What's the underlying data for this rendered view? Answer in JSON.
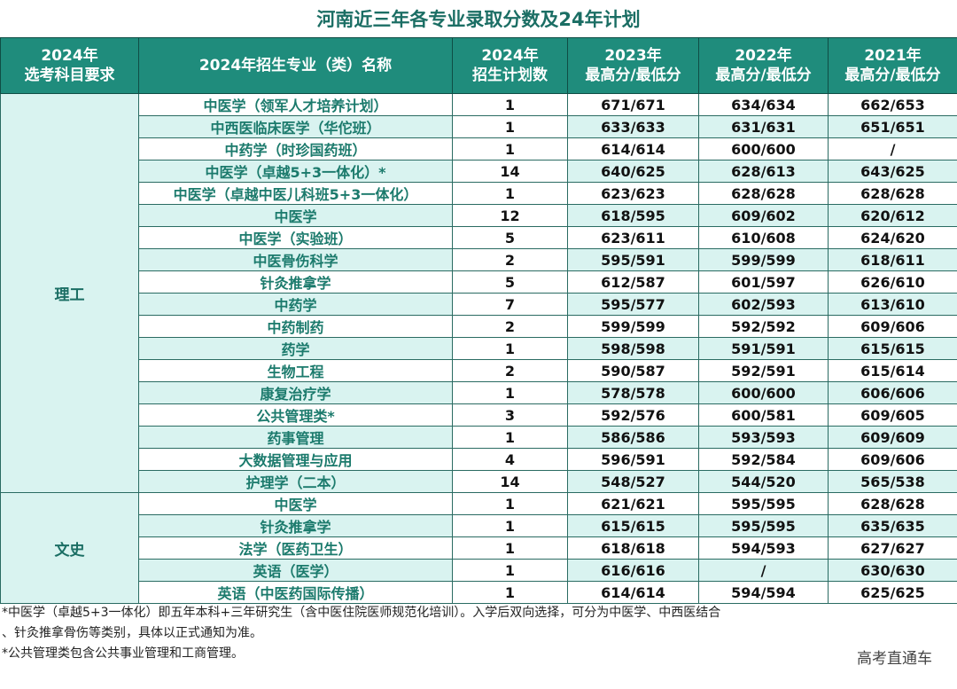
{
  "title": "河南近三年各专业录取分数及24年计划",
  "headers": [
    {
      "line1": "2024年",
      "line2": "选考科目要求"
    },
    {
      "line1": "2024年招生专业（类）名称",
      "line2": ""
    },
    {
      "line1": "2024年",
      "line2": "招生计划数"
    },
    {
      "line1": "2023年",
      "line2": "最高分/最低分"
    },
    {
      "line1": "2022年",
      "line2": "最高分/最低分"
    },
    {
      "line1": "2021年",
      "line2": "最高分/最低分"
    }
  ],
  "groups": [
    {
      "name": "理工",
      "rows": [
        {
          "major": "中医学（领军人才培养计划）",
          "plan": "1",
          "y2023": "671/671",
          "y2022": "634/634",
          "y2021": "662/653"
        },
        {
          "major": "中西医临床医学（华佗班）",
          "plan": "1",
          "y2023": "633/633",
          "y2022": "631/631",
          "y2021": "651/651"
        },
        {
          "major": "中药学（时珍国药班）",
          "plan": "1",
          "y2023": "614/614",
          "y2022": "600/600",
          "y2021": "/"
        },
        {
          "major": "中医学（卓越5+3一体化）*",
          "plan": "14",
          "y2023": "640/625",
          "y2022": "628/613",
          "y2021": "643/625"
        },
        {
          "major": "中医学（卓越中医儿科班5+3一体化）",
          "plan": "1",
          "y2023": "623/623",
          "y2022": "628/628",
          "y2021": "628/628"
        },
        {
          "major": "中医学",
          "plan": "12",
          "y2023": "618/595",
          "y2022": "609/602",
          "y2021": "620/612"
        },
        {
          "major": "中医学（实验班）",
          "plan": "5",
          "y2023": "623/611",
          "y2022": "610/608",
          "y2021": "624/620"
        },
        {
          "major": "中医骨伤科学",
          "plan": "2",
          "y2023": "595/591",
          "y2022": "599/599",
          "y2021": "618/611"
        },
        {
          "major": "针灸推拿学",
          "plan": "5",
          "y2023": "612/587",
          "y2022": "601/597",
          "y2021": "626/610"
        },
        {
          "major": "中药学",
          "plan": "7",
          "y2023": "595/577",
          "y2022": "602/593",
          "y2021": "613/610"
        },
        {
          "major": "中药制药",
          "plan": "2",
          "y2023": "599/599",
          "y2022": "592/592",
          "y2021": "609/606"
        },
        {
          "major": "药学",
          "plan": "1",
          "y2023": "598/598",
          "y2022": "591/591",
          "y2021": "615/615"
        },
        {
          "major": "生物工程",
          "plan": "2",
          "y2023": "590/587",
          "y2022": "592/591",
          "y2021": "615/614"
        },
        {
          "major": "康复治疗学",
          "plan": "1",
          "y2023": "578/578",
          "y2022": "600/600",
          "y2021": "606/606"
        },
        {
          "major": "公共管理类*",
          "plan": "3",
          "y2023": "592/576",
          "y2022": "600/581",
          "y2021": "609/605"
        },
        {
          "major": "药事管理",
          "plan": "1",
          "y2023": "586/586",
          "y2022": "593/593",
          "y2021": "609/609"
        },
        {
          "major": "大数据管理与应用",
          "plan": "4",
          "y2023": "596/591",
          "y2022": "592/584",
          "y2021": "609/606"
        },
        {
          "major": "护理学（二本）",
          "plan": "14",
          "y2023": "548/527",
          "y2022": "544/520",
          "y2021": "565/538"
        }
      ]
    },
    {
      "name": "文史",
      "rows": [
        {
          "major": "中医学",
          "plan": "1",
          "y2023": "621/621",
          "y2022": "595/595",
          "y2021": "628/628"
        },
        {
          "major": "针灸推拿学",
          "plan": "1",
          "y2023": "615/615",
          "y2022": "595/595",
          "y2021": "635/635"
        },
        {
          "major": "法学（医药卫生）",
          "plan": "1",
          "y2023": "618/618",
          "y2022": "594/593",
          "y2021": "627/627"
        },
        {
          "major": "英语（医学）",
          "plan": "1",
          "y2023": "616/616",
          "y2022": "/",
          "y2021": "630/630"
        },
        {
          "major": "英语（中医药国际传播）",
          "plan": "1",
          "y2023": "614/614",
          "y2022": "594/594",
          "y2021": "625/625"
        }
      ]
    }
  ],
  "notes": [
    "*中医学（卓越5+3一体化）即五年本科+三年研究生（含中医住院医师规范化培训）。入学后双向选择，可分为中医学、中西医结合",
    "、针灸推拿骨伤等类别，具体以正式通知为准。",
    "*公共管理类包含公共事业管理和工商管理。"
  ],
  "watermark": "高考直通车",
  "colors": {
    "header_bg": "#1f8c7c",
    "stripe": "#d9f3f0",
    "title": "#1b6e64"
  }
}
